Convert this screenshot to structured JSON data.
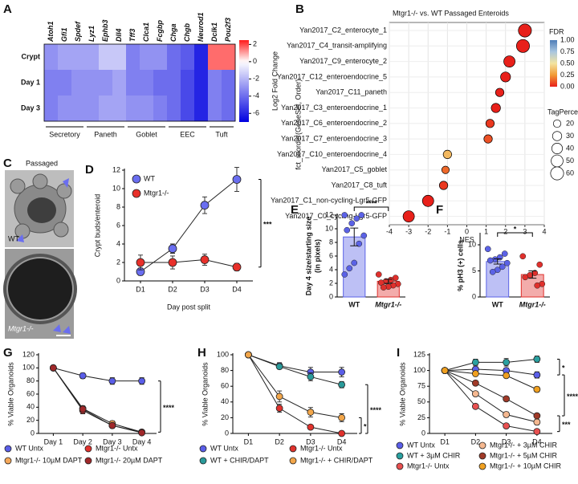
{
  "chart_data": [
    {
      "type": "heatmap",
      "panel": "A",
      "columns": [
        "Atoh1",
        "Gfi1",
        "Spdef",
        "Lyz1",
        "Ephb3",
        "Dll4",
        "Tff3",
        "Clca1",
        "Fcgbp",
        "Chga",
        "Chgb",
        "Neurod1",
        "Dclk1",
        "Pou2f3"
      ],
      "rows": [
        "Crypt",
        "Day 1",
        "Day 3"
      ],
      "values": [
        [
          -3,
          -2.5,
          -2.5,
          -2.5,
          -1.5,
          -1.5,
          -3.5,
          -3,
          -3,
          -4,
          -4.5,
          -6,
          1.6,
          1.6
        ],
        [
          -3.5,
          -3.5,
          -3,
          -3,
          -3,
          -2.5,
          -3.5,
          -3.5,
          -4,
          -4,
          -5,
          -6,
          -3.5,
          -4
        ],
        [
          -3.5,
          -3,
          -3,
          -3,
          -2.5,
          -2.5,
          -3,
          -3,
          -3.5,
          -4,
          -5,
          -6,
          -3.5,
          -4
        ]
      ],
      "groups": [
        "Secretory",
        "Paneth",
        "Goblet",
        "EEC",
        "Tuft"
      ],
      "zlim": [
        -7,
        2.5
      ],
      "zticks": [
        2,
        0,
        -2,
        -4,
        -6
      ],
      "zlabel": "Log2 Fold Change",
      "colors": {
        "low": "#0000e0",
        "mid": "#ffffff",
        "high": "#ff1a1a"
      }
    },
    {
      "type": "dot",
      "panel": "B",
      "title": "Mtgr1-/- vs. WT Passaged Enteroids",
      "categories": [
        "Yan2017_C2_enterocyte_1",
        "Yan2017_C4_transit-amplifying",
        "Yan2017_C9_enterocyte_2",
        "Yan2017_C12_enteroendocrine_5",
        "Yan2017_C11_paneth",
        "Yan2017_C3_enteroendocrine_1",
        "Yan2017_C6_enteroendocrine_2",
        "Yan2017_C7_enteroendocrine_3",
        "Yan2017_C10_enteroendocrine_4",
        "Yan2017_C5_goblet",
        "Yan2017_C8_tuft",
        "Yan2017_C1_non-cycling-Lgr5-GFP",
        "Yan2017_C0_cycling-Lgr5-GFP"
      ],
      "values": [
        3.0,
        2.9,
        2.2,
        2.0,
        1.7,
        1.5,
        1.2,
        1.1,
        -1.0,
        -1.1,
        -1.2,
        -2.0,
        -3.0
      ],
      "fdr": [
        0,
        0,
        0,
        0,
        0,
        0,
        0.05,
        0.1,
        0.35,
        0.15,
        0.05,
        0,
        0
      ],
      "tag_percent": [
        60,
        60,
        45,
        35,
        25,
        30,
        25,
        25,
        25,
        20,
        25,
        45,
        45
      ],
      "xlabel": "NES",
      "ylabel": "fct_reorder(GeneSet, Order)",
      "xlim": [
        -4,
        4
      ],
      "xticks": [
        -4,
        -3,
        -2,
        -1,
        0,
        1,
        2,
        3,
        4
      ],
      "fdr_title": "FDR",
      "fdr_lim": [
        0,
        1
      ],
      "fdr_ticks": [
        {
          "value": 1,
          "label": "1.00"
        },
        0.75,
        {
          "value": 0.5,
          "label": "0.50"
        },
        0.25,
        {
          "value": 0,
          "label": "0.00"
        }
      ],
      "fdr_colors": [
        "#e8201a",
        "#f29a35",
        "#f3e4a0",
        "#a9c6df",
        "#4f7db8"
      ],
      "size_title": "TagPercent",
      "size_ticks": [
        20,
        30,
        40,
        50,
        60
      ]
    },
    {
      "type": "image",
      "panel": "C",
      "title": "Passaged",
      "labels": [
        "WT",
        "Mtgr1-/-"
      ]
    },
    {
      "type": "line",
      "panel": "D",
      "categories": [
        "D1",
        "D2",
        "D3",
        "D4"
      ],
      "xlabel": "Day post split",
      "ylabel": "Crypt buds/enteroid",
      "ylim": [
        0,
        12
      ],
      "yticks": [
        0,
        2,
        4,
        6,
        8,
        10,
        12
      ],
      "series": [
        {
          "name": "WT",
          "color": "#6a6ef0",
          "values": [
            1.0,
            3.5,
            8.2,
            11.0
          ],
          "errors": [
            0.4,
            0.5,
            0.9,
            1.3
          ]
        },
        {
          "name": "Mtgr1-/-",
          "color": "#e8302a",
          "values": [
            2.0,
            2.0,
            2.3,
            1.5
          ],
          "errors": [
            0.8,
            0.7,
            0.6,
            0.4
          ]
        }
      ],
      "significance": [
        "***"
      ]
    },
    {
      "type": "bar",
      "panel": "E",
      "categories": [
        "WT",
        "Mtgr1-/-"
      ],
      "ylabel": [
        "Day 4 size/starting size",
        "(in pixels)"
      ],
      "values": [
        8.8,
        2.3
      ],
      "errors": [
        1.3,
        0.3
      ],
      "points": [
        [
          12,
          12,
          11.5,
          10.8,
          9.8,
          9,
          7.8,
          5,
          4.2,
          3.3
        ],
        [
          3.3,
          2.8,
          2.5,
          2.3,
          2.1,
          1.9,
          1.7,
          1.5,
          1.4
        ]
      ],
      "colors": [
        "#5b62e6",
        "#e0302c"
      ],
      "ylim": [
        0,
        12
      ],
      "yticks": [
        0,
        2,
        4,
        6,
        8,
        10,
        12
      ],
      "significance": [
        "****"
      ]
    },
    {
      "type": "bar",
      "panel": "F",
      "categories": [
        "WT",
        "Mtgr1-/-"
      ],
      "ylabel": [
        "% pH3 (+) cells"
      ],
      "values": [
        6.8,
        4.3
      ],
      "errors": [
        0.5,
        0.7
      ],
      "points": [
        [
          9.2,
          8.3,
          7.6,
          7.2,
          7,
          6.5,
          5.8,
          5.2,
          4.8
        ],
        [
          7.8,
          6.2,
          4.6,
          4.2,
          3.8,
          2.5,
          2.2
        ]
      ],
      "colors": [
        "#5b62e6",
        "#e0302c"
      ],
      "ylim": [
        0,
        12
      ],
      "yticks": [
        0,
        5,
        10
      ],
      "significance": [
        "*"
      ]
    },
    {
      "type": "line",
      "panel": "G",
      "categories": [
        "Day 1",
        "Day 2",
        "Day 3",
        "Day 4"
      ],
      "ylabel": "% Viable Organoids",
      "ylim": [
        0,
        120
      ],
      "yticks": [
        0,
        20,
        40,
        60,
        80,
        100,
        120
      ],
      "series": [
        {
          "name": "WT Untx",
          "color": "#5a5ee8",
          "values": [
            100,
            88,
            80,
            80
          ],
          "errors": [
            0,
            4,
            5,
            5
          ]
        },
        {
          "name": "Mtgr1-/- 10µM DAPT",
          "color": "#f5a85a",
          "values": [
            100,
            38,
            15,
            2
          ],
          "errors": [
            0,
            4,
            4,
            1
          ]
        },
        {
          "name": "Mtgr1-/- Untx",
          "color": "#e0322d",
          "values": [
            100,
            35,
            12,
            2
          ],
          "errors": [
            0,
            5,
            4,
            1
          ]
        },
        {
          "name": "Mtgr1-/- 20µM DAPT",
          "color": "#a0282a",
          "values": [
            100,
            37,
            12,
            1
          ],
          "errors": [
            0,
            4,
            3,
            1
          ]
        }
      ],
      "significance": [
        "****"
      ]
    },
    {
      "type": "line",
      "panel": "H",
      "categories": [
        "D1",
        "D2",
        "D3",
        "D4"
      ],
      "ylabel": "% Viable Organoids",
      "ylim": [
        0,
        100
      ],
      "yticks": [
        0,
        20,
        40,
        60,
        80,
        100
      ],
      "series": [
        {
          "name": "WT Untx",
          "color": "#5a5ee8",
          "values": [
            100,
            86,
            78,
            78
          ],
          "errors": [
            0,
            4,
            6,
            6
          ]
        },
        {
          "name": "WT + CHIR/DAPT",
          "color": "#2a9a9a",
          "values": [
            100,
            85,
            72,
            62
          ],
          "errors": [
            0,
            3,
            5,
            4
          ]
        },
        {
          "name": "Mtgr1-/- Untx",
          "color": "#e0322d",
          "values": [
            100,
            32,
            8,
            0
          ],
          "errors": [
            0,
            5,
            2,
            0
          ]
        },
        {
          "name": "Mtgr1-/- + CHIR/DAPT",
          "color": "#f2a64a",
          "values": [
            100,
            47,
            27,
            20
          ],
          "errors": [
            0,
            7,
            6,
            5
          ]
        }
      ],
      "significance": [
        "****",
        "*"
      ]
    },
    {
      "type": "line",
      "panel": "I",
      "categories": [
        "D1",
        "D2",
        "D3",
        "D4"
      ],
      "ylabel": "% Viable Organoids",
      "ylim": [
        0,
        125
      ],
      "yticks": [
        0,
        25,
        50,
        75,
        100,
        125
      ],
      "series": [
        {
          "name": "WT Untx",
          "color": "#5a5ee8",
          "values": [
            100,
            102,
            100,
            93
          ],
          "errors": [
            0,
            4,
            4,
            5
          ]
        },
        {
          "name": "WT + 3µM CHIR",
          "color": "#2aa0a0",
          "values": [
            100,
            113,
            113,
            118
          ],
          "errors": [
            0,
            5,
            6,
            5
          ]
        },
        {
          "name": "Mtgr1-/- Untx",
          "color": "#e85050",
          "values": [
            100,
            43,
            12,
            3
          ],
          "errors": [
            0,
            3,
            2,
            1
          ]
        },
        {
          "name": "Mtgr1-/- + 3µM CHIR",
          "color": "#f5b890",
          "values": [
            100,
            63,
            30,
            18
          ],
          "errors": [
            0,
            3,
            4,
            4
          ]
        },
        {
          "name": "Mtgr1-/- + 5µM CHIR",
          "color": "#a03a28",
          "values": [
            100,
            80,
            55,
            28
          ],
          "errors": [
            0,
            3,
            3,
            3
          ]
        },
        {
          "name": "Mtgr1-/- + 10µM CHIR",
          "color": "#f0a020",
          "values": [
            100,
            95,
            92,
            70
          ],
          "errors": [
            0,
            3,
            3,
            4
          ]
        }
      ],
      "significance": [
        "*",
        "****",
        "***"
      ]
    }
  ]
}
